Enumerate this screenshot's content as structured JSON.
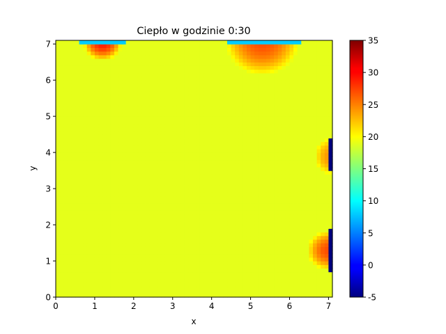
{
  "chart_data": {
    "type": "heatmap",
    "title": "Ciepło w godzinie 0:30",
    "xlabel": "x",
    "ylabel": "y",
    "xlim": [
      0,
      7.1
    ],
    "ylim": [
      0,
      7.1
    ],
    "x_ticks": [
      "0",
      "1",
      "2",
      "3",
      "4",
      "5",
      "6",
      "7"
    ],
    "y_ticks": [
      "0",
      "1",
      "2",
      "3",
      "4",
      "5",
      "6",
      "7"
    ],
    "colorbar": {
      "colormap": "jet",
      "range": [
        -5,
        35
      ],
      "ticks": [
        "-5",
        "0",
        "5",
        "10",
        "15",
        "20",
        "25",
        "30",
        "35"
      ]
    },
    "background_value": 19,
    "grid": false,
    "features": [
      {
        "kind": "heater",
        "cx": 1.2,
        "cy": 7.05,
        "rx": 0.5,
        "ry": 0.5,
        "peak": 29
      },
      {
        "kind": "heater",
        "cx": 5.3,
        "cy": 7.1,
        "rx": 0.95,
        "ry": 0.95,
        "peak": 27
      },
      {
        "kind": "heater",
        "cx": 7.0,
        "cy": 1.3,
        "rx": 0.55,
        "ry": 0.55,
        "peak": 27
      },
      {
        "kind": "heater",
        "cx": 7.0,
        "cy": 3.9,
        "rx": 0.35,
        "ry": 0.5,
        "peak": 24
      },
      {
        "kind": "window",
        "x0": 0.65,
        "x1": 1.75,
        "y0": 6.98,
        "y1": 7.1,
        "value": 8
      },
      {
        "kind": "window",
        "x0": 4.4,
        "x1": 6.3,
        "y0": 6.98,
        "y1": 7.1,
        "value": 8
      },
      {
        "kind": "window",
        "x0": 6.98,
        "x1": 7.1,
        "y0": 3.45,
        "y1": 4.35,
        "value": -5
      },
      {
        "kind": "window",
        "x0": 6.98,
        "x1": 7.1,
        "y0": 0.75,
        "y1": 1.85,
        "value": -5
      }
    ]
  }
}
